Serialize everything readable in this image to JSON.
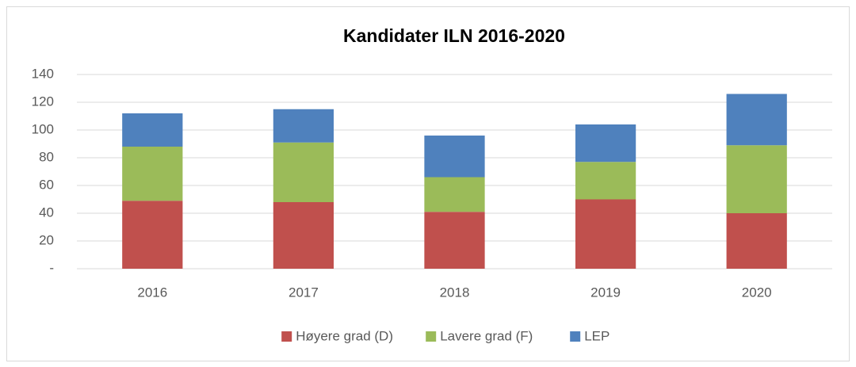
{
  "chart_data": {
    "type": "bar",
    "stacked": true,
    "title": "Kandidater ILN 2016-2020",
    "categories": [
      "2016",
      "2017",
      "2018",
      "2019",
      "2020"
    ],
    "series": [
      {
        "name": "Høyere grad (D)",
        "color": "#c0504d",
        "values": [
          49,
          48,
          41,
          50,
          40
        ]
      },
      {
        "name": "Lavere grad (F)",
        "color": "#9bbb59",
        "values": [
          39,
          43,
          25,
          27,
          49
        ]
      },
      {
        "name": "LEP",
        "color": "#4f81bd",
        "values": [
          24,
          24,
          30,
          27,
          37
        ]
      }
    ],
    "ylim": [
      0,
      140
    ],
    "yticks": [
      {
        "value": 0,
        "label": "-"
      },
      20,
      40,
      60,
      80,
      100,
      120,
      140
    ],
    "grid": true,
    "legend": "bottom"
  }
}
